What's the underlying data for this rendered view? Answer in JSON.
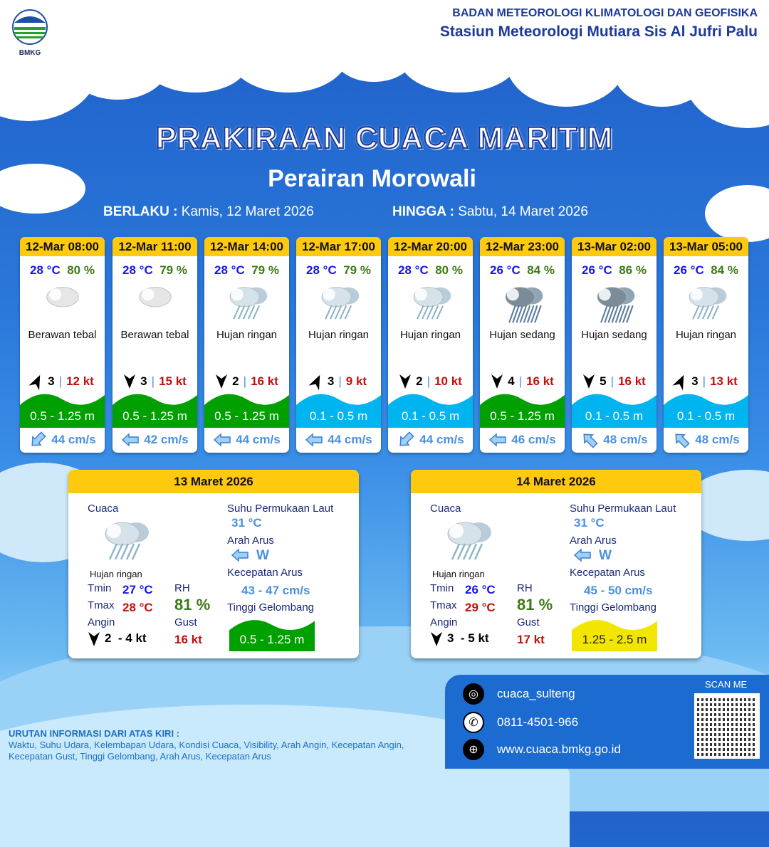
{
  "header": {
    "agency": "BADAN METEOROLOGI KLIMATOLOGI DAN GEOFISIKA",
    "station": "Stasiun Meteorologi Mutiara Sis Al Jufri Palu",
    "logo_text": "BMKG"
  },
  "title": "PRAKIRAAN CUACA MARITIM",
  "subtitle": "Perairan Morowali",
  "validity": {
    "from_label": "BERLAKU :",
    "from_value": "Kamis, 12 Maret 2026",
    "to_label": "HINGGA :",
    "to_value": "Sabtu, 14 Maret 2026"
  },
  "colors": {
    "header_yellow": "#ffc90e",
    "wave_green": "#00a000",
    "wave_blue": "#00b4f0",
    "wave_yellow": "#f2e600",
    "temp": "#1414f0",
    "humidity": "#3c7a14",
    "gust": "#c01010",
    "current": "#4a90e2"
  },
  "forecasts": [
    {
      "time": "12-Mar 08:00",
      "temp": "28 °C",
      "rh": "80 %",
      "icon": "cloudy-icon",
      "condition": "Berawan tebal",
      "wind_dir_deg": 205,
      "wind_speed": "3",
      "gust": "12 kt",
      "wave": "0.5 - 1.25 m",
      "wave_color": "#00a000",
      "current_dir_icon": "arrow-down-left-icon",
      "current_deg": -45,
      "current": "44 cm/s"
    },
    {
      "time": "12-Mar 11:00",
      "temp": "28 °C",
      "rh": "79 %",
      "icon": "cloudy-icon",
      "condition": "Berawan tebal",
      "wind_dir_deg": 0,
      "wind_speed": "3",
      "gust": "15 kt",
      "wave": "0.5 - 1.25 m",
      "wave_color": "#00a000",
      "current_dir_icon": "arrow-left-icon",
      "current_deg": 0,
      "current": "42 cm/s"
    },
    {
      "time": "12-Mar 14:00",
      "temp": "28 °C",
      "rh": "79 %",
      "icon": "light-rain-icon",
      "condition": "Hujan ringan",
      "wind_dir_deg": 0,
      "wind_speed": "2",
      "gust": "16 kt",
      "wave": "0.5 - 1.25 m",
      "wave_color": "#00a000",
      "current_dir_icon": "arrow-left-icon",
      "current_deg": 0,
      "current": "44 cm/s"
    },
    {
      "time": "12-Mar 17:00",
      "temp": "28 °C",
      "rh": "79 %",
      "icon": "light-rain-icon",
      "condition": "Hujan ringan",
      "wind_dir_deg": 205,
      "wind_speed": "3",
      "gust": "9 kt",
      "wave": "0.1 - 0.5 m",
      "wave_color": "#00b4f0",
      "current_dir_icon": "arrow-left-icon",
      "current_deg": 0,
      "current": "44 cm/s"
    },
    {
      "time": "12-Mar 20:00",
      "temp": "28 °C",
      "rh": "80 %",
      "icon": "light-rain-icon",
      "condition": "Hujan ringan",
      "wind_dir_deg": 0,
      "wind_speed": "2",
      "gust": "10 kt",
      "wave": "0.1 - 0.5 m",
      "wave_color": "#00b4f0",
      "current_dir_icon": "arrow-down-left-icon",
      "current_deg": -45,
      "current": "44 cm/s"
    },
    {
      "time": "12-Mar 23:00",
      "temp": "26 °C",
      "rh": "84 %",
      "icon": "moderate-rain-icon",
      "condition": "Hujan sedang",
      "wind_dir_deg": 0,
      "wind_speed": "4",
      "gust": "16 kt",
      "wave": "0.5 - 1.25 m",
      "wave_color": "#00a000",
      "current_dir_icon": "arrow-left-icon",
      "current_deg": 0,
      "current": "46 cm/s"
    },
    {
      "time": "13-Mar 02:00",
      "temp": "26 °C",
      "rh": "86 %",
      "icon": "moderate-rain-icon",
      "condition": "Hujan sedang",
      "wind_dir_deg": 0,
      "wind_speed": "5",
      "gust": "16 kt",
      "wave": "0.1 - 0.5 m",
      "wave_color": "#00b4f0",
      "current_dir_icon": "arrow-up-left-icon",
      "current_deg": 45,
      "current": "48 cm/s"
    },
    {
      "time": "13-Mar 05:00",
      "temp": "26 °C",
      "rh": "84 %",
      "icon": "light-rain-icon",
      "condition": "Hujan ringan",
      "wind_dir_deg": 205,
      "wind_speed": "3",
      "gust": "13 kt",
      "wave": "0.1 - 0.5 m",
      "wave_color": "#00b4f0",
      "current_dir_icon": "arrow-up-left-icon",
      "current_deg": 45,
      "current": "48 cm/s"
    }
  ],
  "daily": [
    {
      "date": "13 Maret 2026",
      "weather_label": "Cuaca",
      "condition": "Hujan ringan",
      "tmin_label": "Tmin",
      "tmin": "27 °C",
      "tmax_label": "Tmax",
      "tmax": "28 °C",
      "rh_label": "RH",
      "rh": "81 %",
      "wind_label": "Angin",
      "wind": "2  - 4 kt",
      "gust_label": "Gust",
      "gust": "16 kt",
      "sst_label": "Suhu Permukaan Laut",
      "sst": "31 °C",
      "current_dir_label": "Arah Arus",
      "current_dir": "W",
      "current_speed_label": "Kecepatan Arus",
      "current_speed": "43 - 47 cm/s",
      "wave_label": "Tinggi Gelombang",
      "wave": "0.5 - 1.25 m",
      "wave_color": "#00a000",
      "wave_text_color": "#ffffff"
    },
    {
      "date": "14 Maret 2026",
      "weather_label": "Cuaca",
      "condition": "Hujan ringan",
      "tmin_label": "Tmin",
      "tmin": "26 °C",
      "tmax_label": "Tmax",
      "tmax": "29 °C",
      "rh_label": "RH",
      "rh": "81 %",
      "wind_label": "Angin",
      "wind": "3  - 5 kt",
      "gust_label": "Gust",
      "gust": "17 kt",
      "sst_label": "Suhu Permukaan Laut",
      "sst": "31 °C",
      "current_dir_label": "Arah Arus",
      "current_dir": "W",
      "current_speed_label": "Kecepatan Arus",
      "current_speed": "45 - 50 cm/s",
      "wave_label": "Tinggi Gelombang",
      "wave": "1.25 - 2.5 m",
      "wave_color": "#f2e600",
      "wave_text_color": "#222222"
    }
  ],
  "footer": {
    "note_title": "URUTAN INFORMASI DARI ATAS KIRI :",
    "note_text": "Waktu, Suhu Udara, Kelembapan Udara, Kondisi Cuaca, Visibility, Arah Angin, Kecepatan Angin, Kecepatan Gust, Tinggi Gelombang, Arah Arus, Kecepatan Arus",
    "instagram": "cuaca_sulteng",
    "phone": "0811-4501-966",
    "website": "www.cuaca.bmkg.go.id",
    "scan_label": "SCAN ME"
  }
}
